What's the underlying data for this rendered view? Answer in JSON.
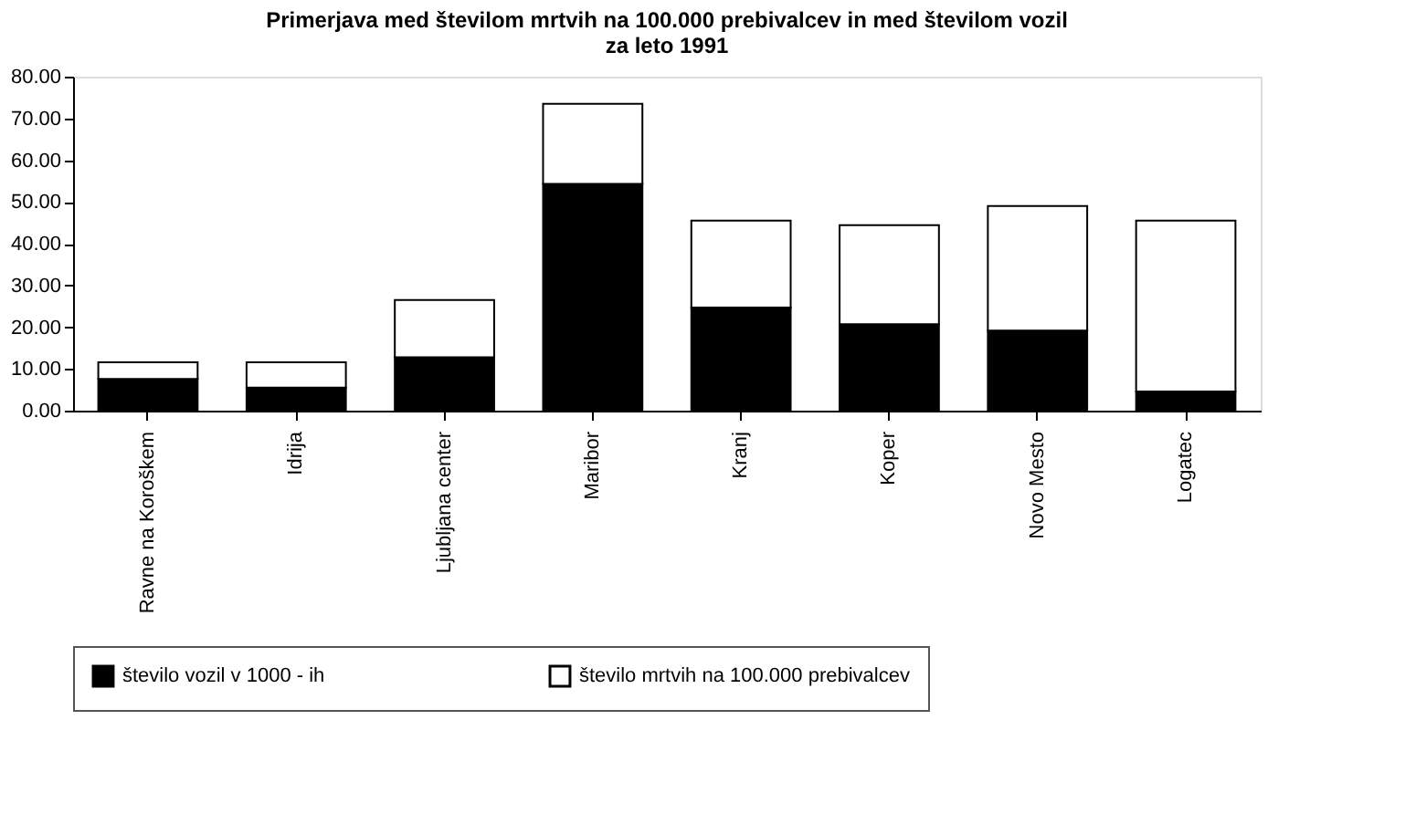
{
  "chart_data": {
    "type": "bar",
    "stacked": true,
    "title": [
      "Primerjava med številom mrtvih na 100.000 prebivalcev in med številom vozil",
      "za leto 1991"
    ],
    "categories": [
      "Ravne na Koroškem",
      "Idrija",
      "Ljubljana center",
      "Maribor",
      "Kranj",
      "Koper",
      "Novo Mesto",
      "Logatec"
    ],
    "series": [
      {
        "name": "število vozil v 1000 - ih",
        "color": "#000000",
        "values": [
          7.6,
          5.5,
          12.8,
          54.3,
          24.7,
          20.7,
          19.2,
          4.6
        ]
      },
      {
        "name": "število mrtvih na 100.000 prebivalcev",
        "color": "#ffffff",
        "values": [
          4.0,
          6.1,
          13.7,
          19.2,
          20.8,
          23.7,
          29.8,
          40.9
        ]
      }
    ],
    "ylim": [
      0,
      80
    ],
    "yticks": [
      {
        "value": 0,
        "label": "0.00"
      },
      {
        "value": 10,
        "label": "10.00"
      },
      {
        "value": 20,
        "label": "20.00"
      },
      {
        "value": 30,
        "label": "30.00"
      },
      {
        "value": 40,
        "label": "40.00"
      },
      {
        "value": 50,
        "label": "50.00"
      },
      {
        "value": 60,
        "label": "60.00"
      },
      {
        "value": 70,
        "label": "70.00"
      },
      {
        "value": 80,
        "label": "80.00"
      }
    ],
    "grid": false,
    "legend": "bottom"
  }
}
